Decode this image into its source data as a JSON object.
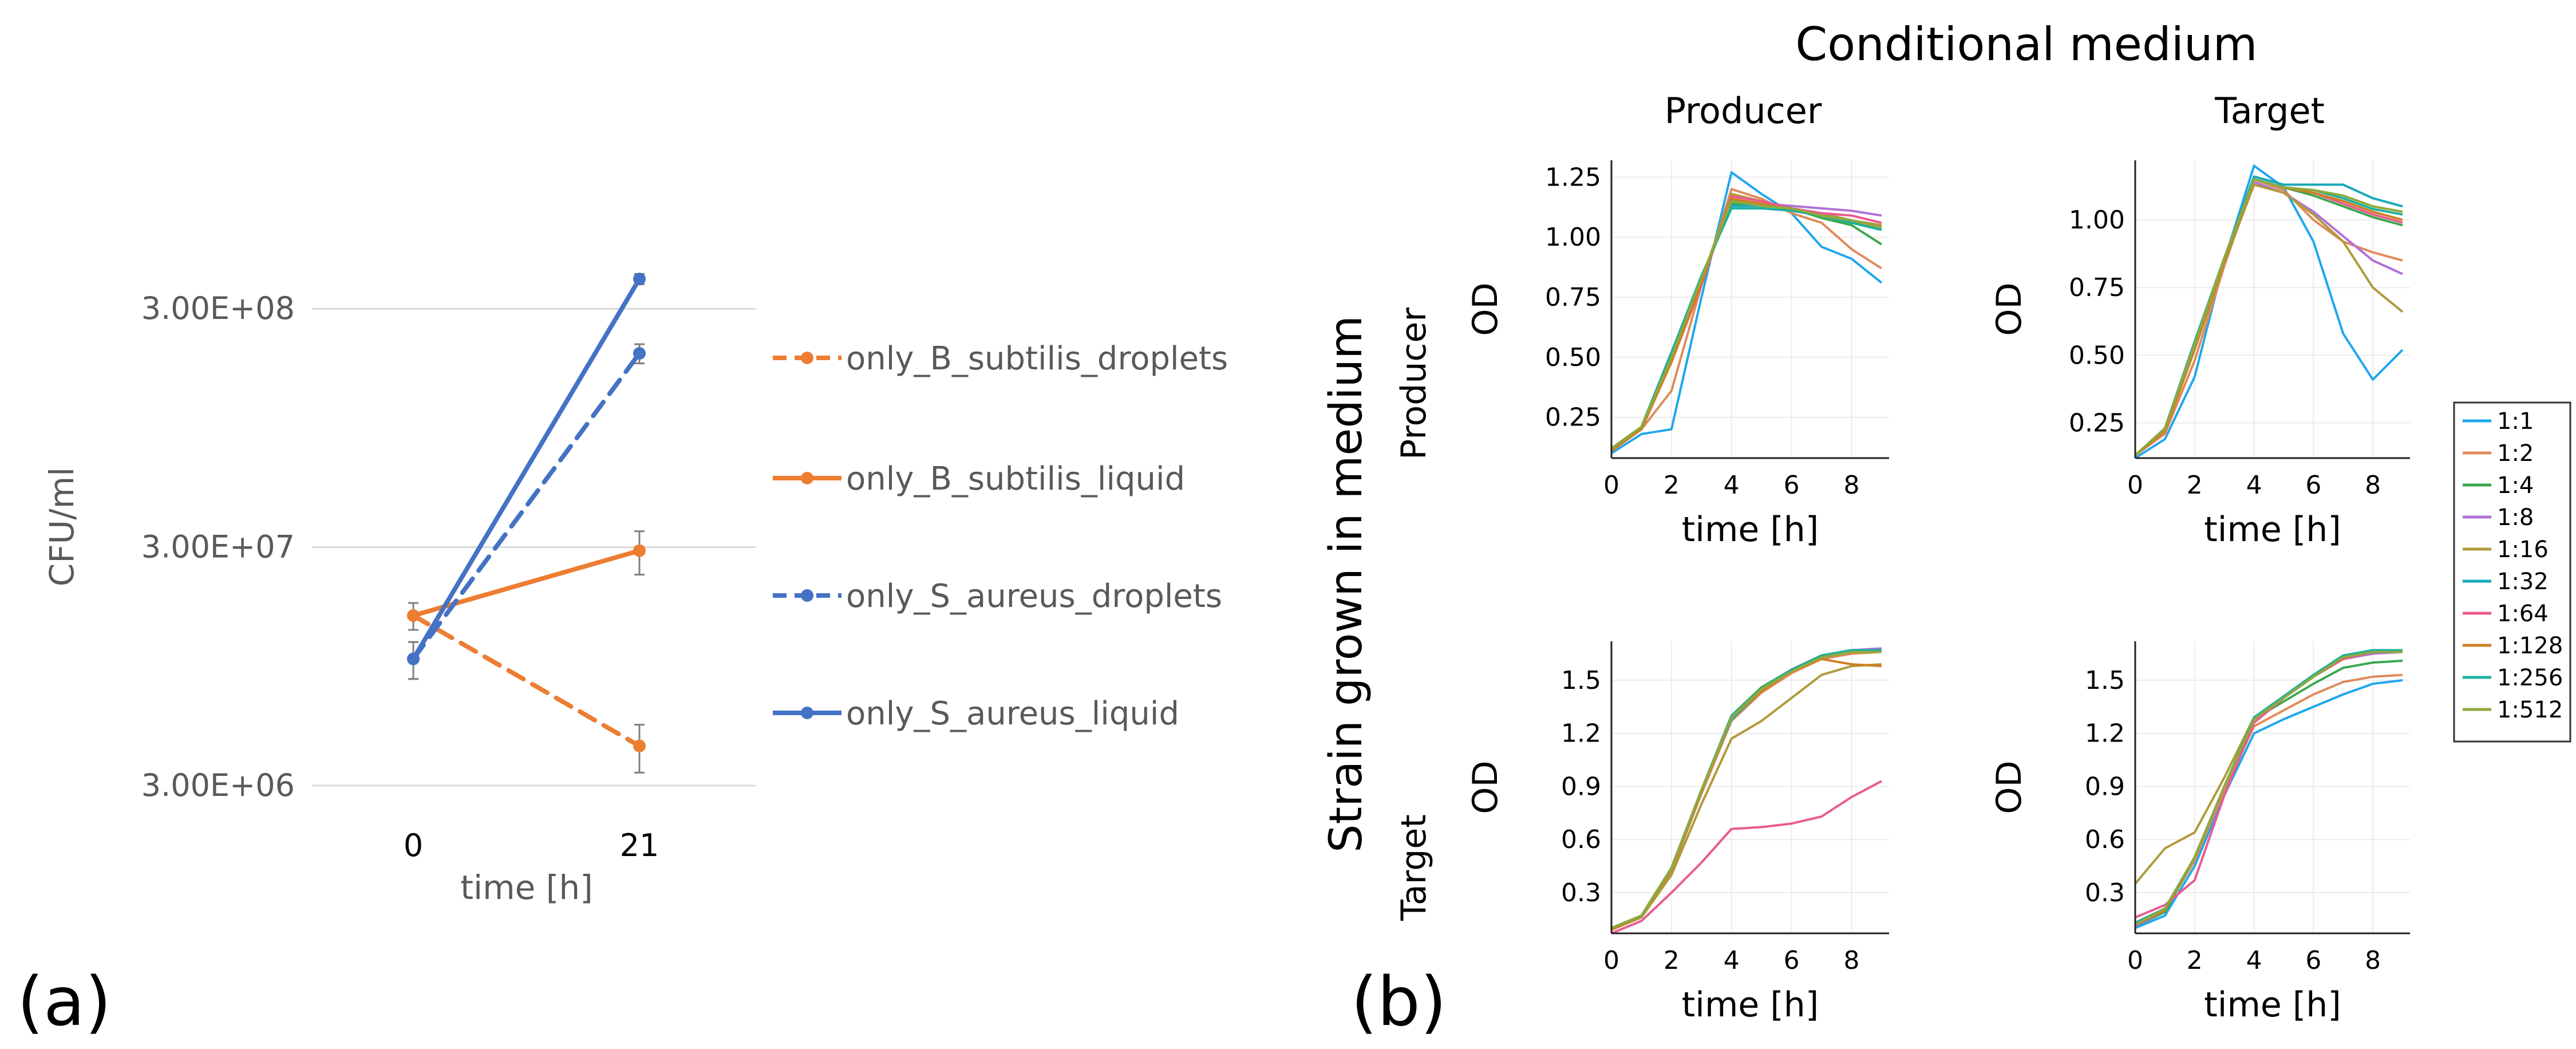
{
  "panel_labels": {
    "a": "(a)",
    "b": "(b)"
  },
  "colors": {
    "orange": "#ED7D31",
    "blue": "#4472C4",
    "grid_a": "#d9d9d9",
    "grid_b": "#ececec",
    "axis": "#222222",
    "text_a": "#595959",
    "dilutions": [
      "#1fa7ee",
      "#e08a5a",
      "#3aa84f",
      "#b070d8",
      "#b09a3a",
      "#17a9b8",
      "#ea5a90",
      "#cf7f22",
      "#1bb0a0",
      "#8faa3c"
    ]
  },
  "chart_data": [
    {
      "id": "a",
      "type": "line",
      "xlabel": "time [h]",
      "ylabel": "CFU/ml",
      "y_scale": "log",
      "ylim": [
        2300000,
        580000000
      ],
      "y_ticks": [
        3000000,
        30000000,
        300000000
      ],
      "y_tick_labels": [
        "3.00E+06",
        "3.00E+07",
        "3.00E+08"
      ],
      "categories": [
        "0",
        "21"
      ],
      "legend_position": "right",
      "series": [
        {
          "name": "only_B_subtilis_droplets",
          "color": "#ED7D31",
          "dash": true,
          "values": [
            15500000,
            4400000
          ],
          "errors": [
            2000000,
            1000000
          ]
        },
        {
          "name": "only_B_subtilis_liquid",
          "color": "#ED7D31",
          "dash": false,
          "values": [
            15500000,
            29000000
          ],
          "errors": [
            2000000,
            6000000
          ]
        },
        {
          "name": "only_S_aureus_droplets",
          "color": "#4472C4",
          "dash": true,
          "values": [
            10200000,
            195000000
          ],
          "errors": [
            1800000,
            18000000
          ]
        },
        {
          "name": "only_S_aureus_liquid",
          "color": "#4472C4",
          "dash": false,
          "values": [
            10200000,
            400000000
          ],
          "errors": [
            1800000,
            20000000
          ]
        }
      ]
    },
    {
      "id": "b",
      "type": "line",
      "title": "Conditional medium",
      "row_group_label": "Strain grown in medium",
      "column_titles": [
        "Producer",
        "Target"
      ],
      "row_titles": [
        "Producer",
        "Target"
      ],
      "xlabel": "time [h]",
      "ylabel": "OD",
      "x": [
        0,
        1,
        2,
        3,
        4,
        5,
        6,
        7,
        8,
        9
      ],
      "x_ticks": [
        0,
        2,
        4,
        6,
        8
      ],
      "legend": [
        "1:1",
        "1:2",
        "1:4",
        "1:8",
        "1:16",
        "1:32",
        "1:64",
        "1:128",
        "1:256",
        "1:512"
      ],
      "legend_position": "right",
      "subplots": [
        {
          "row": 0,
          "col": 0,
          "ylim": [
            0.08,
            1.32
          ],
          "y_ticks": [
            0.25,
            0.5,
            0.75,
            1.0,
            1.25
          ],
          "y_tick_labels": [
            "0.25",
            "0.50",
            "0.75",
            "1.00",
            "1.25"
          ],
          "series": [
            [
              0.1,
              0.18,
              0.2,
              0.75,
              1.27,
              1.18,
              1.1,
              0.96,
              0.91,
              0.81
            ],
            [
              0.11,
              0.2,
              0.36,
              0.8,
              1.2,
              1.16,
              1.1,
              1.06,
              0.95,
              0.87
            ],
            [
              0.12,
              0.21,
              0.52,
              0.83,
              1.14,
              1.13,
              1.12,
              1.08,
              1.05,
              0.97
            ],
            [
              0.12,
              0.21,
              0.5,
              0.82,
              1.15,
              1.14,
              1.13,
              1.12,
              1.11,
              1.09
            ],
            [
              0.12,
              0.2,
              0.5,
              0.82,
              1.18,
              1.15,
              1.12,
              1.1,
              1.07,
              1.05
            ],
            [
              0.12,
              0.21,
              0.52,
              0.83,
              1.13,
              1.13,
              1.12,
              1.09,
              1.07,
              1.04
            ],
            [
              0.11,
              0.2,
              0.48,
              0.8,
              1.17,
              1.15,
              1.12,
              1.1,
              1.09,
              1.06
            ],
            [
              0.11,
              0.2,
              0.48,
              0.81,
              1.16,
              1.14,
              1.11,
              1.09,
              1.06,
              1.04
            ],
            [
              0.12,
              0.21,
              0.52,
              0.84,
              1.12,
              1.12,
              1.11,
              1.09,
              1.06,
              1.03
            ],
            [
              0.12,
              0.21,
              0.5,
              0.83,
              1.15,
              1.13,
              1.12,
              1.09,
              1.07,
              1.04
            ]
          ]
        },
        {
          "row": 0,
          "col": 1,
          "ylim": [
            0.12,
            1.22
          ],
          "y_ticks": [
            0.25,
            0.5,
            0.75,
            1.0
          ],
          "y_tick_labels": [
            "0.25",
            "0.50",
            "0.75",
            "1.00"
          ],
          "series": [
            [
              0.12,
              0.19,
              0.42,
              0.85,
              1.2,
              1.12,
              0.92,
              0.58,
              0.41,
              0.52
            ],
            [
              0.13,
              0.21,
              0.48,
              0.83,
              1.15,
              1.11,
              1.0,
              0.92,
              0.88,
              0.85
            ],
            [
              0.13,
              0.23,
              0.55,
              0.86,
              1.15,
              1.12,
              1.09,
              1.05,
              1.01,
              0.98
            ],
            [
              0.13,
              0.22,
              0.52,
              0.85,
              1.14,
              1.1,
              1.03,
              0.94,
              0.85,
              0.8
            ],
            [
              0.13,
              0.22,
              0.52,
              0.84,
              1.13,
              1.1,
              1.02,
              0.92,
              0.75,
              0.66
            ],
            [
              0.13,
              0.23,
              0.55,
              0.86,
              1.16,
              1.13,
              1.13,
              1.13,
              1.08,
              1.05
            ],
            [
              0.13,
              0.22,
              0.53,
              0.85,
              1.15,
              1.12,
              1.1,
              1.06,
              1.02,
              0.99
            ],
            [
              0.13,
              0.22,
              0.53,
              0.85,
              1.15,
              1.12,
              1.1,
              1.07,
              1.03,
              1.0
            ],
            [
              0.13,
              0.23,
              0.55,
              0.86,
              1.15,
              1.12,
              1.11,
              1.08,
              1.04,
              1.02
            ],
            [
              0.13,
              0.23,
              0.54,
              0.86,
              1.15,
              1.12,
              1.11,
              1.09,
              1.05,
              1.03
            ]
          ]
        },
        {
          "row": 1,
          "col": 0,
          "ylim": [
            0.07,
            1.72
          ],
          "y_ticks": [
            0.3,
            0.6,
            0.9,
            1.2,
            1.5
          ],
          "y_tick_labels": [
            "0.3",
            "0.6",
            "0.9",
            "1.2",
            "1.5"
          ],
          "series": [
            [
              0.09,
              0.17,
              0.44,
              0.88,
              1.3,
              1.45,
              1.55,
              1.64,
              1.67,
              1.67
            ],
            [
              0.09,
              0.16,
              0.42,
              0.86,
              1.27,
              1.43,
              1.54,
              1.62,
              1.65,
              1.66
            ],
            [
              0.1,
              0.17,
              0.44,
              0.88,
              1.3,
              1.46,
              1.56,
              1.64,
              1.66,
              1.67
            ],
            [
              0.09,
              0.17,
              0.43,
              0.87,
              1.29,
              1.44,
              1.56,
              1.64,
              1.67,
              1.68
            ],
            [
              0.09,
              0.16,
              0.4,
              0.8,
              1.17,
              1.27,
              1.4,
              1.53,
              1.58,
              1.59
            ],
            [
              0.1,
              0.17,
              0.44,
              0.88,
              1.28,
              1.44,
              1.55,
              1.63,
              1.66,
              1.67
            ],
            [
              0.07,
              0.14,
              0.3,
              0.47,
              0.66,
              0.67,
              0.69,
              0.73,
              0.84,
              0.93
            ],
            [
              0.09,
              0.17,
              0.43,
              0.87,
              1.29,
              1.44,
              1.55,
              1.62,
              1.59,
              1.58
            ],
            [
              0.1,
              0.17,
              0.44,
              0.88,
              1.3,
              1.45,
              1.56,
              1.64,
              1.67,
              1.67
            ],
            [
              0.1,
              0.17,
              0.44,
              0.88,
              1.29,
              1.45,
              1.55,
              1.63,
              1.66,
              1.66
            ]
          ]
        },
        {
          "row": 1,
          "col": 1,
          "ylim": [
            0.07,
            1.72
          ],
          "y_ticks": [
            0.3,
            0.6,
            0.9,
            1.2,
            1.5
          ],
          "y_tick_labels": [
            "0.3",
            "0.6",
            "0.9",
            "1.2",
            "1.5"
          ],
          "series": [
            [
              0.1,
              0.17,
              0.45,
              0.85,
              1.2,
              1.28,
              1.35,
              1.42,
              1.48,
              1.5
            ],
            [
              0.12,
              0.2,
              0.48,
              0.88,
              1.24,
              1.33,
              1.42,
              1.49,
              1.52,
              1.53
            ],
            [
              0.11,
              0.19,
              0.5,
              0.9,
              1.28,
              1.38,
              1.48,
              1.57,
              1.6,
              1.61
            ],
            [
              0.11,
              0.2,
              0.5,
              0.9,
              1.28,
              1.4,
              1.52,
              1.62,
              1.65,
              1.66
            ],
            [
              0.35,
              0.55,
              0.64,
              0.95,
              1.29,
              1.4,
              1.52,
              1.62,
              1.66,
              1.67
            ],
            [
              0.13,
              0.21,
              0.5,
              0.9,
              1.28,
              1.4,
              1.52,
              1.63,
              1.66,
              1.66
            ],
            [
              0.16,
              0.23,
              0.37,
              0.85,
              1.26,
              1.4,
              1.52,
              1.62,
              1.66,
              1.66
            ],
            [
              0.12,
              0.2,
              0.5,
              0.9,
              1.28,
              1.4,
              1.52,
              1.63,
              1.66,
              1.67
            ],
            [
              0.12,
              0.21,
              0.5,
              0.9,
              1.29,
              1.41,
              1.53,
              1.64,
              1.67,
              1.67
            ],
            [
              0.12,
              0.21,
              0.5,
              0.9,
              1.28,
              1.4,
              1.52,
              1.63,
              1.66,
              1.66
            ]
          ]
        }
      ]
    }
  ]
}
